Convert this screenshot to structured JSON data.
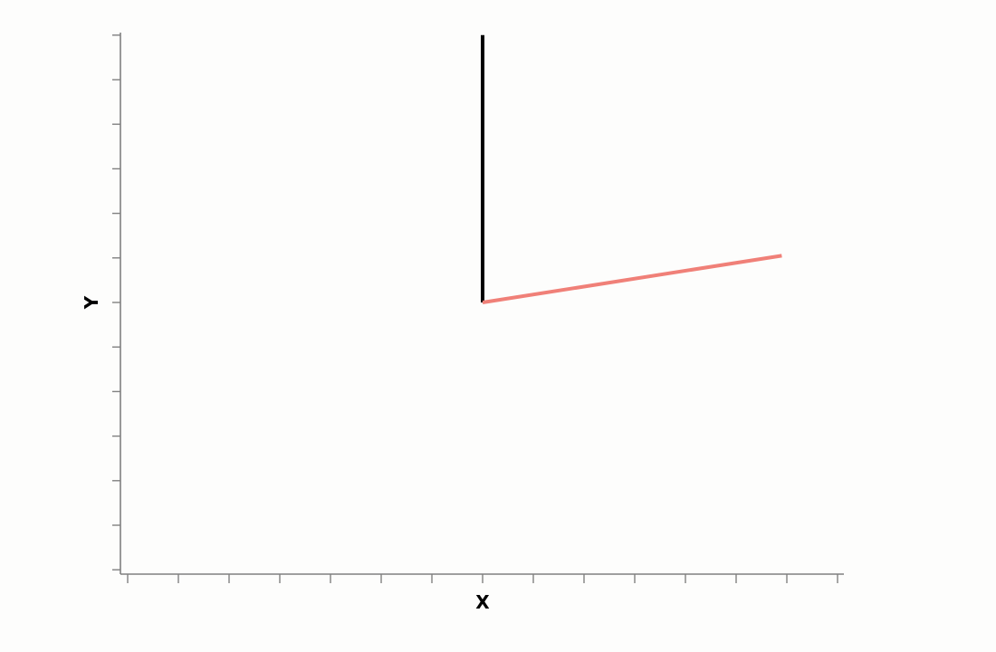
{
  "chart_data": {
    "type": "line",
    "xlabel": "X",
    "ylabel": "Y",
    "xlim": [
      -7,
      7
    ],
    "ylim": [
      -6,
      6
    ],
    "x_ticks": [
      -7,
      -6,
      -5,
      -4,
      -3,
      -2,
      -1,
      0,
      1,
      2,
      3,
      4,
      5,
      6,
      7
    ],
    "y_ticks": [
      -6,
      -5,
      -4,
      -3,
      -2,
      -1,
      0,
      1,
      2,
      3,
      4,
      5,
      6
    ],
    "tick_labels_shown": false,
    "grid": false,
    "series": [
      {
        "color": "#000000",
        "x": [
          0,
          0
        ],
        "y": [
          0,
          6
        ]
      },
      {
        "color": "#f08078",
        "x": [
          0,
          5.9
        ],
        "y": [
          0,
          1.05
        ]
      }
    ]
  }
}
